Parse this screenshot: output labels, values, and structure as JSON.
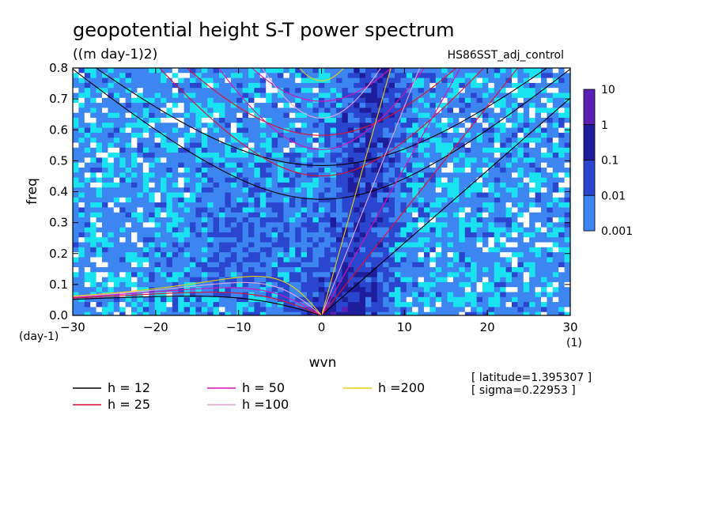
{
  "chart_data": {
    "type": "heatmap",
    "title": "geopotential height S-T power spectrum",
    "units": "((m day-1)2)",
    "experiment": "HS86SST_adj_control",
    "xlabel": "wvn",
    "ylabel": "freq",
    "x_unit": "(1)",
    "y_unit": "(day-1)",
    "xlim": [
      -30,
      30
    ],
    "ylim": [
      0,
      0.8
    ],
    "x_ticks": [
      "−30",
      "−20",
      "−10",
      "0",
      "10",
      "20",
      "30"
    ],
    "x_tick_values": [
      -30,
      -20,
      -10,
      0,
      10,
      20,
      30
    ],
    "y_ticks": [
      "0.0",
      "0.1",
      "0.2",
      "0.3",
      "0.4",
      "0.5",
      "0.6",
      "0.7",
      "0.8"
    ],
    "y_tick_values": [
      0,
      0.1,
      0.2,
      0.3,
      0.4,
      0.5,
      0.6,
      0.7,
      0.8
    ],
    "colorbar": {
      "levels": [
        "10",
        "1",
        "0.1",
        "0.01",
        "0.001"
      ],
      "colors": [
        "#5a1fb4",
        "#1e1e9c",
        "#2a46cf",
        "#3d86f2",
        "#19e3f0"
      ],
      "scale": "log"
    },
    "dispersion_curves": [
      {
        "label": "h = 12",
        "h": 12,
        "color": "#000000"
      },
      {
        "label": "h = 25",
        "h": 25,
        "color": "#e01030"
      },
      {
        "label": "h = 50",
        "h": 50,
        "color": "#dd10b4"
      },
      {
        "label": "h =100",
        "h": 100,
        "color": "#e6a3de"
      },
      {
        "label": "h =200",
        "h": 200,
        "color": "#e8cc10"
      }
    ],
    "annotations": {
      "latitude": "[ latitude=1.395307 ]",
      "sigma": "[ sigma=0.22953 ]"
    }
  }
}
